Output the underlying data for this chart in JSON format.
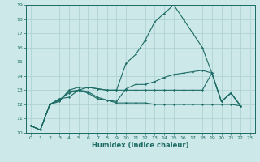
{
  "title": "",
  "xlabel": "Humidex (Indice chaleur)",
  "ylabel": "",
  "xlim": [
    -0.5,
    23.5
  ],
  "ylim": [
    10,
    19
  ],
  "xticks": [
    0,
    1,
    2,
    3,
    4,
    5,
    6,
    7,
    8,
    9,
    10,
    11,
    12,
    13,
    14,
    15,
    16,
    17,
    18,
    19,
    20,
    21,
    22,
    23
  ],
  "yticks": [
    10,
    11,
    12,
    13,
    14,
    15,
    16,
    17,
    18,
    19
  ],
  "bg_color": "#cce8e8",
  "line_color": "#1c6b65",
  "grid_color": "#aacfcf",
  "series": [
    [
      10.5,
      10.2,
      12.0,
      12.2,
      13.0,
      13.2,
      13.2,
      13.1,
      13.0,
      13.0,
      14.9,
      15.5,
      16.5,
      17.8,
      18.4,
      19.0,
      18.0,
      17.0,
      16.0,
      14.2,
      12.2,
      12.8,
      11.9
    ],
    [
      10.5,
      10.2,
      12.0,
      12.3,
      12.9,
      13.0,
      12.9,
      12.5,
      12.3,
      12.2,
      13.1,
      13.4,
      13.4,
      13.6,
      13.9,
      14.1,
      14.2,
      14.3,
      14.4,
      14.2,
      12.2,
      12.8,
      11.9
    ],
    [
      10.5,
      10.2,
      12.0,
      12.4,
      12.5,
      13.0,
      12.8,
      12.4,
      12.3,
      12.1,
      12.1,
      12.1,
      12.1,
      12.0,
      12.0,
      12.0,
      12.0,
      12.0,
      12.0,
      12.0,
      12.0,
      12.0,
      11.9
    ],
    [
      10.5,
      10.2,
      12.0,
      12.3,
      12.8,
      13.0,
      13.2,
      13.1,
      13.0,
      13.0,
      13.0,
      13.0,
      13.0,
      13.0,
      13.0,
      13.0,
      13.0,
      13.0,
      13.0,
      14.2,
      12.2,
      12.8,
      11.9
    ]
  ],
  "xlabel_fontsize": 6.0,
  "tick_fontsize": 4.5
}
